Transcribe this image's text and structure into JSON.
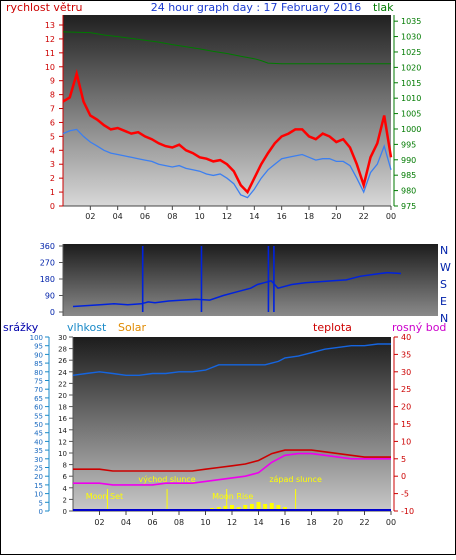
{
  "title": "24 hour graph day : 17 February 2016",
  "colors": {
    "wind_gust": "#ff0000",
    "wind_avg": "#3c7ff0",
    "pressure": "#007a00",
    "direction": "#0022dd",
    "humidity": "#1565e0",
    "temperature": "#cc0000",
    "dewpoint": "#ee00ee",
    "solar": "#ffff00",
    "label_solar": "#e08a00",
    "label_humidity": "#1a8ac8",
    "label_rain": "#0000aa",
    "label_temp": "#cc0000",
    "label_dew": "#cc00cc",
    "annot": "#ffff00"
  },
  "chart_data": [
    {
      "type": "line",
      "name": "wind-pressure",
      "left_label": "rychlost větru",
      "right_label": "tlak",
      "x_ticks": [
        "02",
        "04",
        "06",
        "08",
        "10",
        "12",
        "14",
        "16",
        "18",
        "20",
        "22",
        "00"
      ],
      "left_ticks": [
        "0",
        "1",
        "2",
        "3",
        "4",
        "5",
        "6",
        "7",
        "8",
        "9",
        "10",
        "11",
        "12",
        "13"
      ],
      "right_ticks": [
        "975",
        "980",
        "985",
        "990",
        "995",
        "1000",
        "1005",
        "1010",
        "1015",
        "1020",
        "1025",
        "1030",
        "1035"
      ],
      "left_ylim": [
        0,
        13
      ],
      "right_ylim": [
        975,
        1037
      ],
      "xlim": [
        0,
        24
      ],
      "series": [
        {
          "key": "gust",
          "x": [
            0,
            0.5,
            1,
            1.5,
            2,
            2.5,
            3,
            3.5,
            4,
            4.5,
            5,
            5.5,
            6,
            6.5,
            7,
            7.5,
            8,
            8.5,
            9,
            9.5,
            10,
            10.5,
            11,
            11.5,
            12,
            12.5,
            13,
            13.5,
            14,
            14.5,
            15,
            15.5,
            16,
            16.5,
            17,
            17.5,
            18,
            18.5,
            19,
            19.5,
            20,
            20.5,
            21,
            21.5,
            22,
            22.5,
            23,
            23.5,
            24
          ],
          "y": [
            7.5,
            7.8,
            9.5,
            7.5,
            6.5,
            6.2,
            5.8,
            5.5,
            5.6,
            5.4,
            5.2,
            5.3,
            5.0,
            4.8,
            4.5,
            4.3,
            4.2,
            4.4,
            4.0,
            3.8,
            3.5,
            3.4,
            3.2,
            3.3,
            3.0,
            2.5,
            1.5,
            1.0,
            2.0,
            3.0,
            3.8,
            4.5,
            5.0,
            5.2,
            5.5,
            5.5,
            5.0,
            4.8,
            5.2,
            5.0,
            4.6,
            4.8,
            4.2,
            3.0,
            1.5,
            3.5,
            4.5,
            6.5,
            3.5
          ]
        },
        {
          "key": "avg",
          "x": [
            0,
            0.5,
            1,
            1.5,
            2,
            2.5,
            3,
            3.5,
            4,
            4.5,
            5,
            5.5,
            6,
            6.5,
            7,
            7.5,
            8,
            8.5,
            9,
            9.5,
            10,
            10.5,
            11,
            11.5,
            12,
            12.5,
            13,
            13.5,
            14,
            14.5,
            15,
            15.5,
            16,
            16.5,
            17,
            17.5,
            18,
            18.5,
            19,
            19.5,
            20,
            20.5,
            21,
            21.5,
            22,
            22.5,
            23,
            23.5,
            24
          ],
          "y": [
            5.2,
            5.4,
            5.5,
            5.0,
            4.6,
            4.3,
            4.0,
            3.8,
            3.7,
            3.6,
            3.5,
            3.4,
            3.3,
            3.2,
            3.0,
            2.9,
            2.8,
            2.9,
            2.7,
            2.6,
            2.5,
            2.3,
            2.2,
            2.3,
            2.0,
            1.6,
            0.8,
            0.6,
            1.2,
            2.0,
            2.6,
            3.0,
            3.4,
            3.5,
            3.6,
            3.7,
            3.5,
            3.3,
            3.4,
            3.4,
            3.2,
            3.2,
            2.9,
            2.0,
            1.0,
            2.4,
            3.0,
            4.3,
            2.6
          ]
        },
        {
          "key": "pressure",
          "x": [
            0,
            2,
            3,
            4,
            5,
            6,
            7,
            8,
            9,
            10,
            11,
            12,
            13,
            14,
            14.5,
            15,
            16,
            17,
            18,
            19,
            20,
            21,
            22,
            23,
            24
          ],
          "y": [
            1031.5,
            1031.3,
            1030.5,
            1030,
            1029.4,
            1028.8,
            1028.2,
            1027.4,
            1026.7,
            1026,
            1025.2,
            1024.5,
            1023.6,
            1022.8,
            1022.2,
            1021.4,
            1021.2,
            1021.2,
            1021.2,
            1021.2,
            1021.2,
            1021.2,
            1021.2,
            1021.2,
            1021.2
          ]
        }
      ]
    },
    {
      "type": "line",
      "name": "wind-direction",
      "y_ticks": [
        "0",
        "90",
        "180",
        "270",
        "360"
      ],
      "right_labels": [
        "N",
        "W",
        "S",
        "E",
        "N"
      ],
      "ylim": [
        0,
        360
      ],
      "xlim": [
        0,
        24
      ],
      "series": [
        {
          "key": "direction",
          "x": [
            0,
            1,
            2,
            3,
            4,
            5,
            5.5,
            6,
            7,
            8,
            9,
            10,
            11,
            12,
            13,
            13.5,
            14,
            14.5,
            15,
            16,
            17,
            18,
            19,
            20,
            21,
            22,
            23,
            24
          ],
          "y": [
            30,
            35,
            40,
            45,
            40,
            45,
            55,
            50,
            60,
            65,
            70,
            65,
            90,
            110,
            130,
            150,
            160,
            170,
            130,
            150,
            160,
            165,
            170,
            175,
            195,
            205,
            215,
            210
          ]
        },
        {
          "key": "spikes",
          "x": [
            5.1,
            9.4,
            14.3,
            14.7
          ],
          "y": [
            360,
            360,
            360,
            360
          ]
        }
      ]
    },
    {
      "type": "line",
      "name": "rain-humidity-solar-temp",
      "labels": {
        "rain": "srážky",
        "humidity": "vlhkost",
        "solar": "Solar",
        "temp": "teplota",
        "dew": "rosný bod"
      },
      "x_ticks": [
        "02",
        "04",
        "06",
        "08",
        "10",
        "12",
        "14",
        "16",
        "18",
        "20",
        "22",
        "00"
      ],
      "rain_ticks": [
        "0",
        "5",
        "10",
        "15",
        "20",
        "25",
        "30",
        "35",
        "40",
        "45",
        "50",
        "55",
        "60",
        "65",
        "70",
        "75",
        "80",
        "85",
        "90",
        "95",
        "100"
      ],
      "humidity_ticks": [
        "0",
        "2",
        "4",
        "6",
        "8",
        "10",
        "12",
        "14",
        "16",
        "18",
        "20",
        "22",
        "24",
        "26",
        "28",
        "30"
      ],
      "temp_ticks": [
        "-10",
        "-5",
        "0",
        "5",
        "10",
        "15",
        "20",
        "25",
        "30",
        "35",
        "40"
      ],
      "humidity_ylim": [
        0,
        100
      ],
      "temp_ylim": [
        -10,
        40
      ],
      "xlim": [
        0,
        24
      ],
      "annotations": [
        {
          "label": "Moon Set",
          "x": 2.6
        },
        {
          "label": "východ slunce",
          "x": 7.1
        },
        {
          "label": "Moon Rise",
          "x": 11.6
        },
        {
          "label": "západ slunce",
          "x": 16.8
        }
      ],
      "series": [
        {
          "key": "humidity",
          "x": [
            0,
            1,
            2,
            3,
            4,
            5,
            6,
            7,
            8,
            9,
            10,
            11,
            12,
            12.5,
            13,
            14,
            14.5,
            15,
            15.5,
            16,
            17,
            18,
            19,
            20,
            21,
            22,
            23,
            24
          ],
          "y": [
            78,
            79,
            80,
            79,
            78,
            78,
            79,
            79,
            80,
            80,
            81,
            84,
            84,
            84,
            84,
            84,
            84,
            85,
            86,
            88,
            89,
            91,
            93,
            94,
            95,
            95,
            96,
            96
          ]
        },
        {
          "key": "temperature",
          "x": [
            0,
            1,
            2,
            3,
            4,
            5,
            6,
            7,
            8,
            9,
            10,
            11,
            12,
            13,
            14,
            14.5,
            15,
            15.5,
            16,
            17,
            18,
            19,
            20,
            21,
            22,
            23,
            24
          ],
          "y": [
            2,
            2,
            2,
            1.5,
            1.5,
            1.5,
            1.5,
            1.5,
            1.5,
            1.5,
            2,
            2.5,
            3,
            3.5,
            4.5,
            5.5,
            6.5,
            7,
            7.5,
            7.5,
            7.5,
            7,
            6.5,
            6,
            5.5,
            5.5,
            5.5
          ]
        },
        {
          "key": "dewpoint",
          "x": [
            0,
            1,
            2,
            3,
            4,
            5,
            6,
            7,
            8,
            9,
            10,
            11,
            12,
            13,
            14,
            14.5,
            15,
            15.5,
            16,
            17,
            18,
            19,
            20,
            21,
            22,
            23,
            24
          ],
          "y": [
            -2,
            -2,
            -2,
            -2.5,
            -2.5,
            -2.5,
            -2.5,
            -2,
            -2,
            -2,
            -1.5,
            -1,
            -0.5,
            0,
            1,
            2.5,
            4,
            5,
            6,
            6.5,
            6.5,
            6,
            5.5,
            5,
            5,
            5,
            5
          ]
        },
        {
          "key": "solar",
          "x": [
            7.2,
            8,
            9,
            10,
            10.5,
            11,
            11.5,
            12,
            12.5,
            13,
            13.5,
            14,
            14.5,
            15,
            15.5,
            16,
            16.5,
            17
          ],
          "y": [
            0.5,
            1,
            1.5,
            2,
            3,
            4,
            5,
            6,
            4,
            6,
            7,
            9,
            7,
            8,
            6,
            4,
            2,
            0.5
          ]
        }
      ]
    }
  ]
}
